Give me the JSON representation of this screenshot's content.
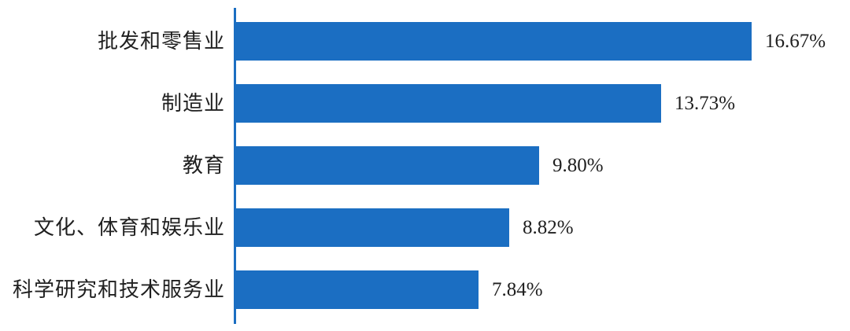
{
  "chart_data": {
    "type": "bar",
    "orientation": "horizontal",
    "title": "",
    "xlabel": "",
    "ylabel": "",
    "grid": false,
    "legend": null,
    "xlim": [
      0,
      18
    ],
    "categories": [
      "批发和零售业",
      "制造业",
      "教育",
      "文化、体育和娱乐业",
      "科学研究和技术服务业"
    ],
    "values": [
      16.67,
      13.73,
      9.8,
      8.82,
      7.84
    ],
    "value_labels": [
      "16.67%",
      "13.73%",
      "9.80%",
      "8.82%",
      "7.84%"
    ],
    "bar_color": "#1B6EC2",
    "axis_color": "#1B6EC2",
    "text_color": "#1F1F1F",
    "background_color": "#FFFFFF"
  }
}
